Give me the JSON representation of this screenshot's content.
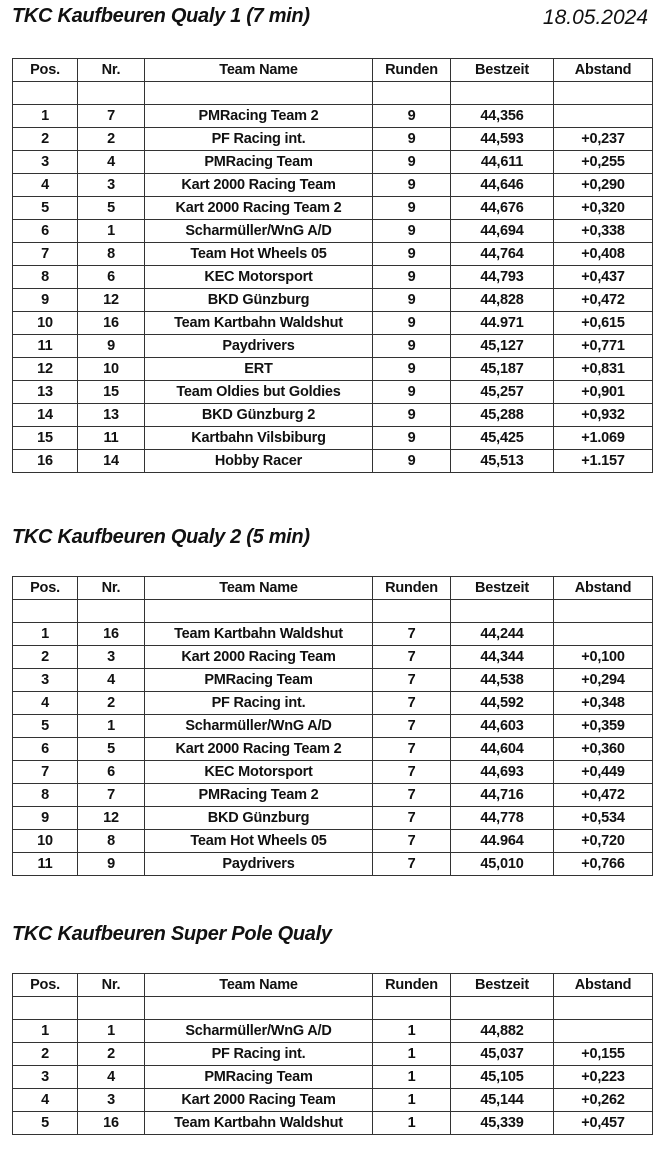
{
  "date": "18.05.2024",
  "columns": [
    "Pos.",
    "Nr.",
    "Team Name",
    "Runden",
    "Bestzeit",
    "Abstand"
  ],
  "sections": [
    {
      "title": "TKC Kaufbeuren Qualy 1 (7 min)",
      "rows": [
        [
          "1",
          "7",
          "PMRacing Team 2",
          "9",
          "44,356",
          ""
        ],
        [
          "2",
          "2",
          "PF Racing int.",
          "9",
          "44,593",
          "+0,237"
        ],
        [
          "3",
          "4",
          "PMRacing Team",
          "9",
          "44,611",
          "+0,255"
        ],
        [
          "4",
          "3",
          "Kart 2000 Racing Team",
          "9",
          "44,646",
          "+0,290"
        ],
        [
          "5",
          "5",
          "Kart 2000 Racing Team 2",
          "9",
          "44,676",
          "+0,320"
        ],
        [
          "6",
          "1",
          "Scharmüller/WnG A/D",
          "9",
          "44,694",
          "+0,338"
        ],
        [
          "7",
          "8",
          "Team Hot Wheels 05",
          "9",
          "44,764",
          "+0,408"
        ],
        [
          "8",
          "6",
          "KEC Motorsport",
          "9",
          "44,793",
          "+0,437"
        ],
        [
          "9",
          "12",
          "BKD Günzburg",
          "9",
          "44,828",
          "+0,472"
        ],
        [
          "10",
          "16",
          "Team Kartbahn Waldshut",
          "9",
          "44.971",
          "+0,615"
        ],
        [
          "11",
          "9",
          "Paydrivers",
          "9",
          "45,127",
          "+0,771"
        ],
        [
          "12",
          "10",
          "ERT",
          "9",
          "45,187",
          "+0,831"
        ],
        [
          "13",
          "15",
          "Team Oldies but Goldies",
          "9",
          "45,257",
          "+0,901"
        ],
        [
          "14",
          "13",
          "BKD Günzburg 2",
          "9",
          "45,288",
          "+0,932"
        ],
        [
          "15",
          "11",
          "Kartbahn Vilsbiburg",
          "9",
          "45,425",
          "+1.069"
        ],
        [
          "16",
          "14",
          "Hobby Racer",
          "9",
          "45,513",
          "+1.157"
        ]
      ]
    },
    {
      "title": "TKC Kaufbeuren Qualy 2 (5 min)",
      "rows": [
        [
          "1",
          "16",
          "Team Kartbahn Waldshut",
          "7",
          "44,244",
          ""
        ],
        [
          "2",
          "3",
          "Kart 2000 Racing Team",
          "7",
          "44,344",
          "+0,100"
        ],
        [
          "3",
          "4",
          "PMRacing Team",
          "7",
          "44,538",
          "+0,294"
        ],
        [
          "4",
          "2",
          "PF Racing int.",
          "7",
          "44,592",
          "+0,348"
        ],
        [
          "5",
          "1",
          "Scharmüller/WnG A/D",
          "7",
          "44,603",
          "+0,359"
        ],
        [
          "6",
          "5",
          "Kart 2000 Racing Team 2",
          "7",
          "44,604",
          "+0,360"
        ],
        [
          "7",
          "6",
          "KEC Motorsport",
          "7",
          "44,693",
          "+0,449"
        ],
        [
          "8",
          "7",
          "PMRacing Team 2",
          "7",
          "44,716",
          "+0,472"
        ],
        [
          "9",
          "12",
          "BKD Günzburg",
          "7",
          "44,778",
          "+0,534"
        ],
        [
          "10",
          "8",
          "Team Hot Wheels 05",
          "7",
          "44.964",
          "+0,720"
        ],
        [
          "11",
          "9",
          "Paydrivers",
          "7",
          "45,010",
          "+0,766"
        ]
      ]
    },
    {
      "title": "TKC Kaufbeuren Super Pole Qualy",
      "rows": [
        [
          "1",
          "1",
          "Scharmüller/WnG A/D",
          "1",
          "44,882",
          ""
        ],
        [
          "2",
          "2",
          "PF Racing int.",
          "1",
          "45,037",
          "+0,155"
        ],
        [
          "3",
          "4",
          "PMRacing Team",
          "1",
          "45,105",
          "+0,223"
        ],
        [
          "4",
          "3",
          "Kart 2000 Racing Team",
          "1",
          "45,144",
          "+0,262"
        ],
        [
          "5",
          "16",
          "Team Kartbahn Waldshut",
          "1",
          "45,339",
          "+0,457"
        ]
      ]
    }
  ]
}
